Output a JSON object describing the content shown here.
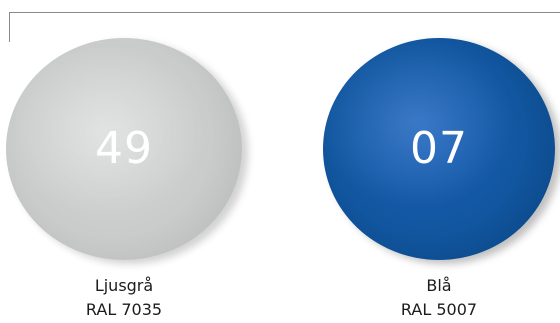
{
  "swatches": [
    {
      "number": "49",
      "name": "Ljusgrå",
      "code": "RAL 7035",
      "color": "#c9ccca"
    },
    {
      "number": "07",
      "name": "Blå",
      "code": "RAL 5007",
      "color": "#11569f"
    }
  ]
}
